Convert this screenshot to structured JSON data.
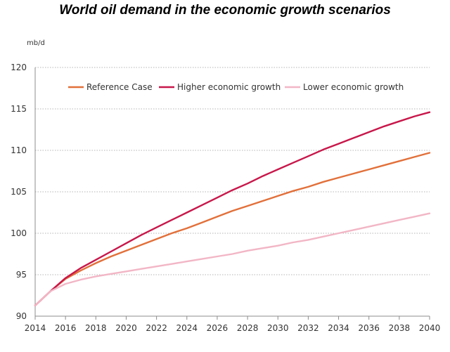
{
  "chart_data": {
    "type": "line",
    "title": "World oil demand in the economic growth scenarios",
    "ylabel": "mb/d",
    "xlabel": "",
    "xlim": [
      2014,
      2040
    ],
    "ylim": [
      90,
      120
    ],
    "x_ticks": [
      "2014",
      "2016",
      "2018",
      "2020",
      "2022",
      "2024",
      "2026",
      "2028",
      "2030",
      "2032",
      "2034",
      "2036",
      "2038",
      "2040"
    ],
    "y_ticks": [
      "90",
      "95",
      "100",
      "105",
      "110",
      "115",
      "120"
    ],
    "grid": "horizontal, dotted",
    "legend_position": "top",
    "x": [
      2014,
      2015,
      2016,
      2017,
      2018,
      2019,
      2020,
      2021,
      2022,
      2023,
      2024,
      2025,
      2026,
      2027,
      2028,
      2029,
      2030,
      2031,
      2032,
      2033,
      2034,
      2035,
      2036,
      2037,
      2038,
      2039,
      2040
    ],
    "series": [
      {
        "name": "Reference Case",
        "color": "#e2703a",
        "values": [
          91.3,
          93.0,
          94.5,
          95.5,
          96.4,
          97.2,
          97.9,
          98.6,
          99.3,
          100.0,
          100.6,
          101.3,
          102.0,
          102.7,
          103.3,
          103.9,
          104.5,
          105.1,
          105.6,
          106.2,
          106.7,
          107.2,
          107.7,
          108.2,
          108.7,
          109.2,
          109.7
        ]
      },
      {
        "name": "Higher economic growth",
        "color": "#c8174a",
        "values": [
          91.3,
          93.0,
          94.6,
          95.8,
          96.8,
          97.8,
          98.8,
          99.8,
          100.7,
          101.6,
          102.5,
          103.4,
          104.3,
          105.2,
          106.0,
          106.9,
          107.7,
          108.5,
          109.3,
          110.1,
          110.8,
          111.5,
          112.2,
          112.9,
          113.5,
          114.1,
          114.6
        ]
      },
      {
        "name": "Lower economic growth",
        "color": "#f2b6c6",
        "values": [
          91.3,
          93.0,
          93.9,
          94.4,
          94.8,
          95.1,
          95.4,
          95.7,
          96.0,
          96.3,
          96.6,
          96.9,
          97.2,
          97.5,
          97.9,
          98.2,
          98.5,
          98.9,
          99.2,
          99.6,
          100.0,
          100.4,
          100.8,
          101.2,
          101.6,
          102.0,
          102.4
        ]
      }
    ]
  }
}
